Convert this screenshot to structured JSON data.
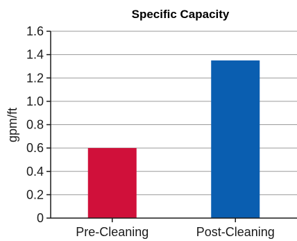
{
  "chart_data": {
    "type": "bar",
    "title": "Specific Capacity",
    "xlabel": "",
    "ylabel": "gpm/ft",
    "categories": [
      "Pre-Cleaning",
      "Post-Cleaning"
    ],
    "values": [
      0.6,
      1.35
    ],
    "ylim": [
      0,
      1.6
    ],
    "yticks": [
      "0",
      "0.2",
      "0.4",
      "0.6",
      "0.8",
      "1.0",
      "1.2",
      "1.4",
      "1.6"
    ],
    "grid": "horizontal",
    "bar_colors": [
      "#d0103a",
      "#0a5eb0"
    ],
    "gridline_color": "#9a9a9a",
    "axis_color": "#1a1a1a"
  }
}
